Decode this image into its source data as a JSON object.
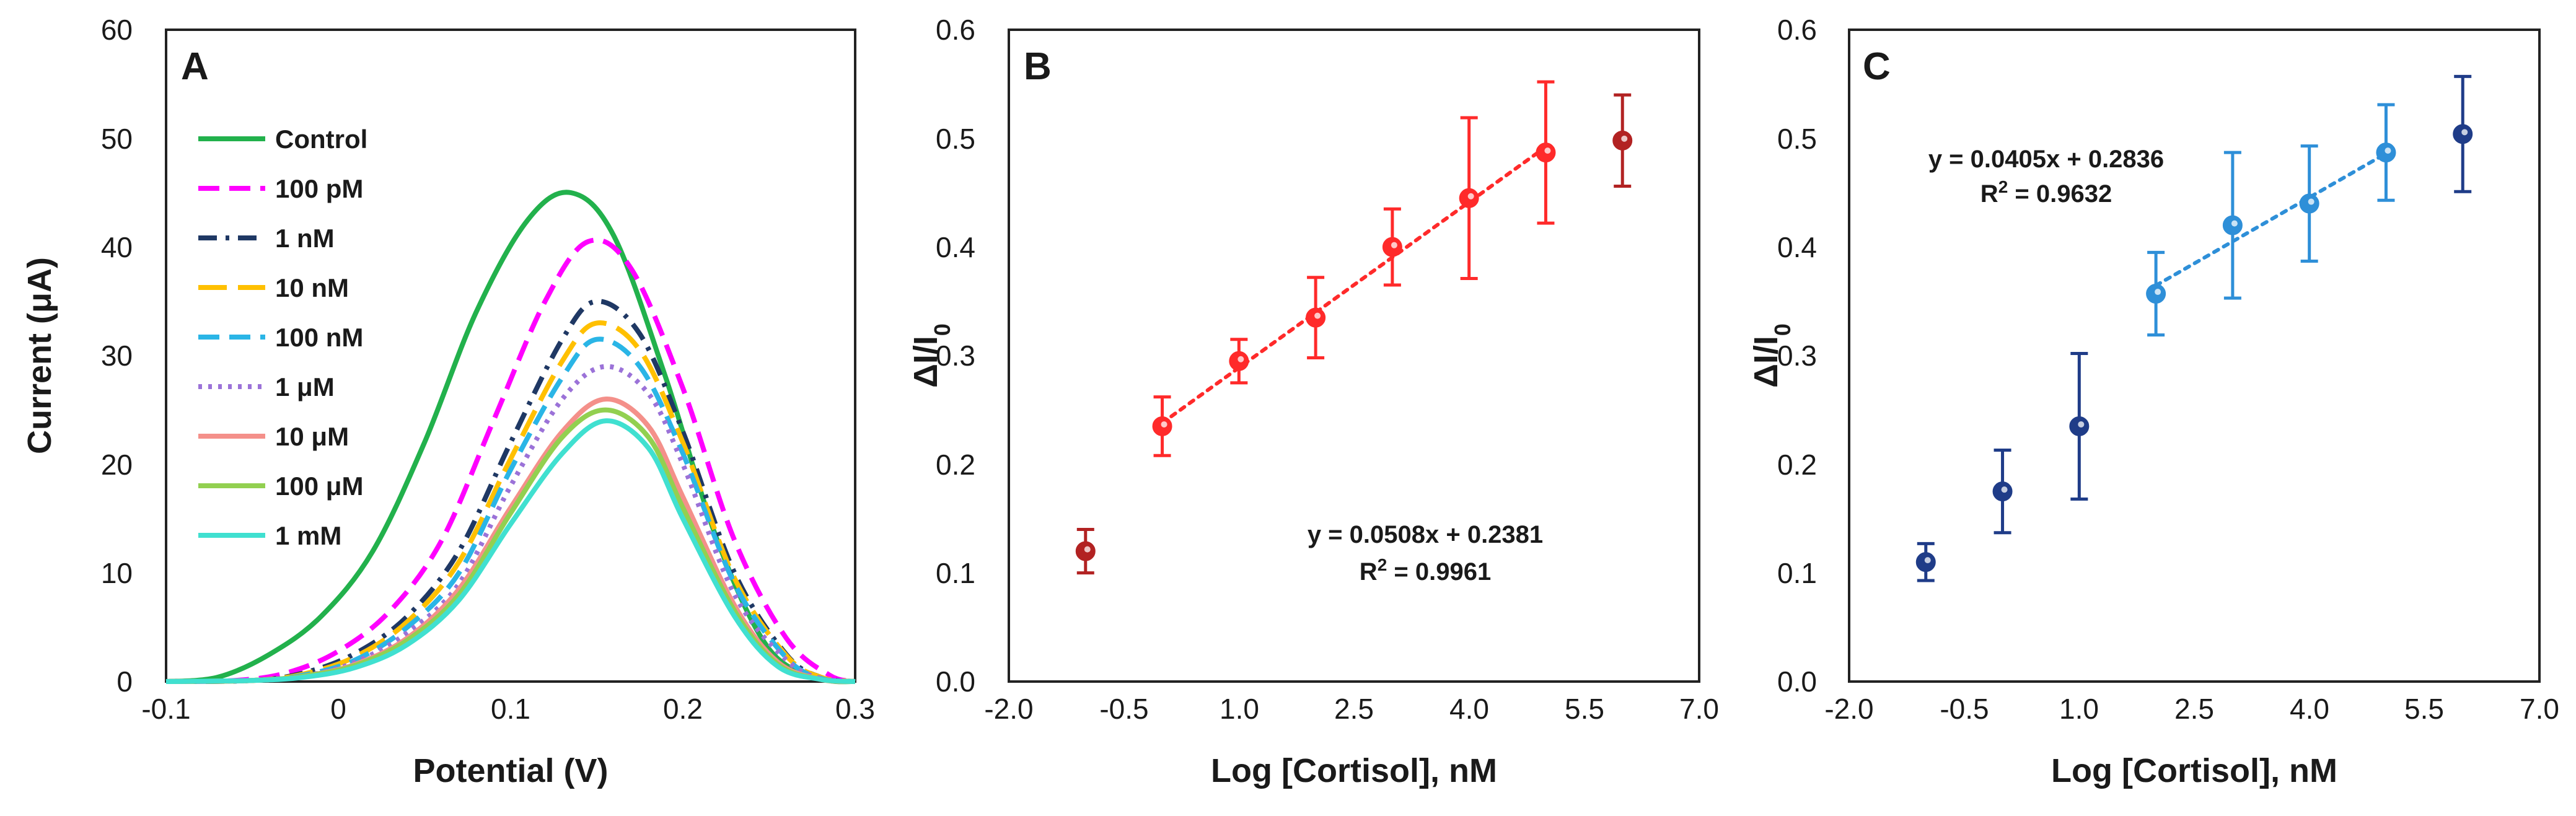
{
  "chart_data": [
    {
      "id": "A",
      "type": "line",
      "panel_label": "A",
      "xlabel": "Potential (V)",
      "ylabel": "Current (μA)",
      "xlim": [
        -0.1,
        0.3
      ],
      "ylim": [
        0,
        60
      ],
      "xticks": [
        -0.1,
        0,
        0.1,
        0.2,
        0.3
      ],
      "xtick_labels": [
        "-0.1",
        "0",
        "0.1",
        "0.2",
        "0.3"
      ],
      "yticks": [
        0,
        10,
        20,
        30,
        40,
        50,
        60
      ],
      "ytick_labels": [
        "0",
        "10",
        "20",
        "30",
        "40",
        "50",
        "60"
      ],
      "legend_position": "top-left",
      "series": [
        {
          "name": "Control",
          "color": "#22b14c",
          "style": "solid",
          "x": [
            -0.1,
            -0.07,
            -0.04,
            -0.01,
            0.02,
            0.05,
            0.08,
            0.11,
            0.135,
            0.16,
            0.19,
            0.22,
            0.25,
            0.28,
            0.3
          ],
          "y": [
            0,
            0.4,
            2.5,
            6,
            12,
            22,
            34,
            42.5,
            45,
            41,
            28,
            13,
            3,
            0.3,
            0
          ]
        },
        {
          "name": "100 pM",
          "color": "#ff00ff",
          "style": "dash",
          "x": [
            -0.1,
            -0.06,
            -0.03,
            0,
            0.03,
            0.06,
            0.09,
            0.12,
            0.145,
            0.17,
            0.2,
            0.23,
            0.26,
            0.285,
            0.3
          ],
          "y": [
            0,
            0.1,
            0.8,
            2.8,
            6.5,
            13,
            24,
            35,
            40.5,
            38,
            27,
            13,
            4,
            0.6,
            0
          ]
        },
        {
          "name": "1 nM",
          "color": "#1f3864",
          "style": "dashdot",
          "x": [
            -0.1,
            -0.05,
            -0.02,
            0.01,
            0.04,
            0.07,
            0.1,
            0.13,
            0.15,
            0.175,
            0.2,
            0.23,
            0.26,
            0.28,
            0.3
          ],
          "y": [
            0,
            0.1,
            0.8,
            2.6,
            6,
            12,
            22,
            31.5,
            35,
            32,
            23,
            10,
            2.5,
            0.4,
            0
          ]
        },
        {
          "name": "10 nM",
          "color": "#ffc000",
          "style": "longdash",
          "x": [
            -0.1,
            -0.05,
            -0.02,
            0.01,
            0.04,
            0.07,
            0.1,
            0.13,
            0.15,
            0.175,
            0.2,
            0.23,
            0.26,
            0.28,
            0.3
          ],
          "y": [
            0,
            0.1,
            0.7,
            2.3,
            5.5,
            11,
            20.5,
            29.5,
            33,
            30.5,
            22,
            9.5,
            2.4,
            0.4,
            0
          ]
        },
        {
          "name": "100 nM",
          "color": "#2ab5e6",
          "style": "dash",
          "x": [
            -0.1,
            -0.05,
            -0.02,
            0.01,
            0.04,
            0.07,
            0.1,
            0.13,
            0.15,
            0.175,
            0.2,
            0.23,
            0.26,
            0.28,
            0.3
          ],
          "y": [
            0,
            0.1,
            0.6,
            2,
            5,
            10,
            19.5,
            28,
            31.5,
            29,
            21,
            9,
            2.2,
            0.3,
            0
          ]
        },
        {
          "name": "1 μM",
          "color": "#9b72d8",
          "style": "dot",
          "x": [
            -0.1,
            -0.05,
            -0.02,
            0.01,
            0.04,
            0.07,
            0.1,
            0.13,
            0.155,
            0.18,
            0.2,
            0.23,
            0.26,
            0.28,
            0.3
          ],
          "y": [
            0,
            0.1,
            0.5,
            1.8,
            4.5,
            9,
            18,
            26,
            29,
            26.5,
            20,
            8,
            2,
            0.3,
            0
          ]
        },
        {
          "name": "10 μM",
          "color": "#f4908a",
          "style": "solid",
          "x": [
            -0.1,
            -0.05,
            -0.02,
            0.01,
            0.04,
            0.07,
            0.1,
            0.13,
            0.155,
            0.18,
            0.2,
            0.23,
            0.255,
            0.28,
            0.3
          ],
          "y": [
            0,
            0.1,
            0.5,
            1.6,
            4,
            8.5,
            16,
            23,
            26,
            23.5,
            17,
            7,
            1.8,
            0.2,
            0
          ]
        },
        {
          "name": "100 μM",
          "color": "#92d050",
          "style": "solid",
          "x": [
            -0.1,
            -0.05,
            -0.02,
            0.01,
            0.04,
            0.07,
            0.1,
            0.13,
            0.155,
            0.18,
            0.2,
            0.23,
            0.255,
            0.28,
            0.3
          ],
          "y": [
            0,
            0.1,
            0.5,
            1.5,
            3.8,
            8,
            15.5,
            22.5,
            25,
            22.5,
            16,
            6.5,
            1.6,
            0.2,
            0
          ]
        },
        {
          "name": "1 mM",
          "color": "#40e0d0",
          "style": "solid",
          "x": [
            -0.1,
            -0.05,
            -0.02,
            0.01,
            0.04,
            0.07,
            0.1,
            0.13,
            0.155,
            0.18,
            0.2,
            0.23,
            0.255,
            0.28,
            0.3
          ],
          "y": [
            0,
            0.1,
            0.4,
            1.3,
            3.4,
            7.5,
            14.5,
            21,
            24,
            21.5,
            15,
            6,
            1.4,
            0.2,
            0
          ]
        }
      ]
    },
    {
      "id": "B",
      "type": "scatter",
      "panel_label": "B",
      "xlabel": "Log [Cortisol], nM",
      "ylabel_main": "ΔI/I",
      "ylabel_sub": "0",
      "xlim": [
        -2.0,
        7.0
      ],
      "ylim": [
        0,
        0.6
      ],
      "xticks": [
        -2.0,
        -0.5,
        1.0,
        2.5,
        4.0,
        5.5,
        7.0
      ],
      "xtick_labels": [
        "-2.0",
        "-0.5",
        "1.0",
        "2.5",
        "4.0",
        "5.5",
        "7.0"
      ],
      "yticks": [
        0,
        0.1,
        0.2,
        0.3,
        0.4,
        0.5,
        0.6
      ],
      "ytick_labels": [
        "0.0",
        "0.1",
        "0.2",
        "0.3",
        "0.4",
        "0.5",
        "0.6"
      ],
      "points": [
        {
          "x": -1,
          "y": 0.12,
          "err": 0.02,
          "color": "#b22222"
        },
        {
          "x": 0,
          "y": 0.235,
          "err": 0.027,
          "color": "#ff2a2a"
        },
        {
          "x": 1,
          "y": 0.295,
          "err": 0.02,
          "color": "#ff2a2a"
        },
        {
          "x": 2,
          "y": 0.335,
          "err": 0.037,
          "color": "#ff2a2a"
        },
        {
          "x": 3,
          "y": 0.4,
          "err": 0.035,
          "color": "#ff2a2a"
        },
        {
          "x": 4,
          "y": 0.445,
          "err": 0.074,
          "color": "#ff2a2a"
        },
        {
          "x": 5,
          "y": 0.487,
          "err": 0.065,
          "color": "#ff2a2a"
        },
        {
          "x": 6,
          "y": 0.498,
          "err": 0.042,
          "color": "#b22222"
        }
      ],
      "fit": {
        "slope": 0.0508,
        "intercept": 0.2381,
        "x_range": [
          0,
          5
        ],
        "color": "#ff2a2a"
      },
      "equation": "y = 0.0508x + 0.2381",
      "r2_prefix": "R",
      "r2_exp": "2",
      "r2_value": " = 0.9961"
    },
    {
      "id": "C",
      "type": "scatter",
      "panel_label": "C",
      "xlabel": "Log [Cortisol], nM",
      "ylabel_main": "ΔI/I",
      "ylabel_sub": "0",
      "xlim": [
        -2.0,
        7.0
      ],
      "ylim": [
        0,
        0.6
      ],
      "xticks": [
        -2.0,
        -0.5,
        1.0,
        2.5,
        4.0,
        5.5,
        7.0
      ],
      "xtick_labels": [
        "-2.0",
        "-0.5",
        "1.0",
        "2.5",
        "4.0",
        "5.5",
        "7.0"
      ],
      "yticks": [
        0,
        0.1,
        0.2,
        0.3,
        0.4,
        0.5,
        0.6
      ],
      "ytick_labels": [
        "0.0",
        "0.1",
        "0.2",
        "0.3",
        "0.4",
        "0.5",
        "0.6"
      ],
      "points": [
        {
          "x": -1,
          "y": 0.11,
          "err": 0.017,
          "color": "#1f3c88"
        },
        {
          "x": 0,
          "y": 0.175,
          "err": 0.038,
          "color": "#1f3c88"
        },
        {
          "x": 1,
          "y": 0.235,
          "err": 0.067,
          "color": "#1f3c88"
        },
        {
          "x": 2,
          "y": 0.357,
          "err": 0.038,
          "color": "#2e8fd8"
        },
        {
          "x": 3,
          "y": 0.42,
          "err": 0.067,
          "color": "#2e8fd8"
        },
        {
          "x": 4,
          "y": 0.44,
          "err": 0.053,
          "color": "#2e8fd8"
        },
        {
          "x": 5,
          "y": 0.487,
          "err": 0.044,
          "color": "#2e8fd8"
        },
        {
          "x": 6,
          "y": 0.504,
          "err": 0.053,
          "color": "#1f3c88"
        }
      ],
      "fit": {
        "slope": 0.0405,
        "intercept": 0.2836,
        "x_range": [
          2,
          5
        ],
        "color": "#2e8fd8"
      },
      "equation": "y = 0.0405x + 0.2836",
      "r2_prefix": "R",
      "r2_exp": "2",
      "r2_value": " = 0.9632"
    }
  ]
}
